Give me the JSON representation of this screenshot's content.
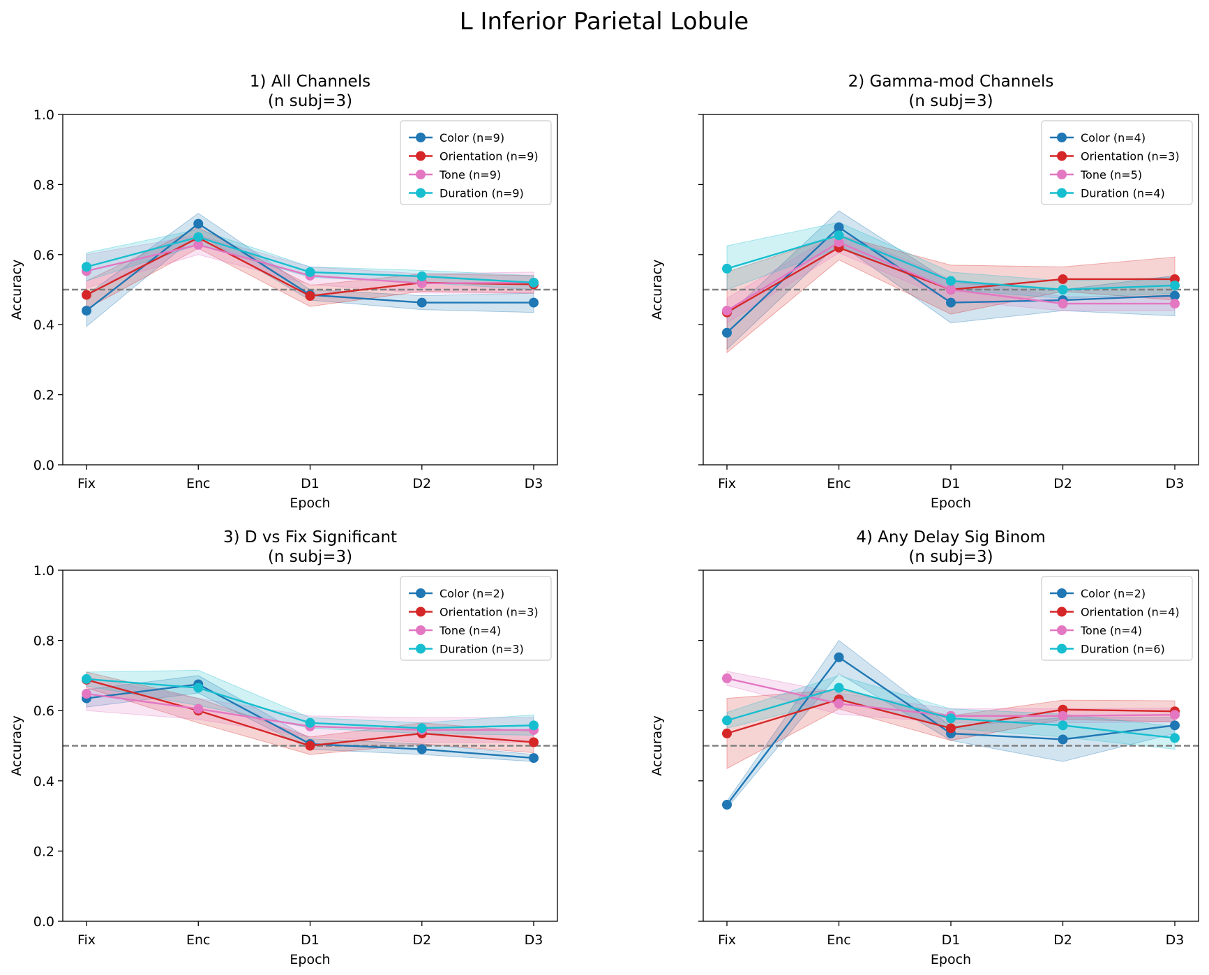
{
  "figure_title": "L Inferior Parietal Lobule",
  "colors": {
    "Color": "#1f77b4",
    "Orientation": "#d62728",
    "Tone": "#e377c2",
    "Duration": "#17becf",
    "chance_line": "#808080"
  },
  "chart_data": [
    {
      "type": "line",
      "title": "1) All Channels",
      "subtitle": "(n subj=3)",
      "xlabel": "Epoch",
      "ylabel": "Accuracy",
      "categories": [
        "Fix",
        "Enc",
        "D1",
        "D2",
        "D3"
      ],
      "ylim": [
        0.0,
        1.0
      ],
      "yticks": [
        "0.0",
        "0.2",
        "0.4",
        "0.6",
        "0.8",
        "1.0"
      ],
      "show_ytick_labels": true,
      "chance_level": 0.5,
      "legend_position": "top-right",
      "series": [
        {
          "name": "Color (n=9)",
          "key": "Color",
          "values": [
            0.44,
            0.688,
            0.485,
            0.463,
            0.463
          ],
          "lower": [
            0.395,
            0.658,
            0.47,
            0.443,
            0.435
          ],
          "upper": [
            0.485,
            0.718,
            0.5,
            0.483,
            0.49
          ]
        },
        {
          "name": "Orientation (n=9)",
          "key": "Orientation",
          "values": [
            0.485,
            0.648,
            0.482,
            0.52,
            0.515
          ],
          "lower": [
            0.445,
            0.618,
            0.452,
            0.495,
            0.49
          ],
          "upper": [
            0.525,
            0.678,
            0.512,
            0.545,
            0.54
          ]
        },
        {
          "name": "Tone (n=9)",
          "key": "Tone",
          "values": [
            0.553,
            0.628,
            0.54,
            0.518,
            0.52
          ],
          "lower": [
            0.505,
            0.6,
            0.515,
            0.49,
            0.49
          ],
          "upper": [
            0.6,
            0.655,
            0.565,
            0.545,
            0.55
          ]
        },
        {
          "name": "Duration (n=9)",
          "key": "Duration",
          "values": [
            0.565,
            0.65,
            0.55,
            0.538,
            0.52
          ],
          "lower": [
            0.525,
            0.628,
            0.535,
            0.52,
            0.5
          ],
          "upper": [
            0.605,
            0.672,
            0.565,
            0.555,
            0.54
          ]
        }
      ]
    },
    {
      "type": "line",
      "title": "2) Gamma-mod Channels",
      "subtitle": "(n subj=3)",
      "xlabel": "Epoch",
      "ylabel": "Accuracy",
      "categories": [
        "Fix",
        "Enc",
        "D1",
        "D2",
        "D3"
      ],
      "ylim": [
        0.0,
        1.0
      ],
      "yticks": [
        "0.0",
        "0.2",
        "0.4",
        "0.6",
        "0.8",
        "1.0"
      ],
      "show_ytick_labels": false,
      "chance_level": 0.5,
      "legend_position": "top-right",
      "series": [
        {
          "name": "Color (n=4)",
          "key": "Color",
          "values": [
            0.377,
            0.678,
            0.463,
            0.47,
            0.483
          ],
          "lower": [
            0.33,
            0.632,
            0.405,
            0.44,
            0.425
          ],
          "upper": [
            0.425,
            0.725,
            0.52,
            0.5,
            0.54
          ]
        },
        {
          "name": "Orientation (n=3)",
          "key": "Orientation",
          "values": [
            0.435,
            0.62,
            0.5,
            0.53,
            0.53
          ],
          "lower": [
            0.32,
            0.585,
            0.43,
            0.495,
            0.47
          ],
          "upper": [
            0.55,
            0.655,
            0.57,
            0.565,
            0.593
          ]
        },
        {
          "name": "Tone (n=5)",
          "key": "Tone",
          "values": [
            0.44,
            0.635,
            0.5,
            0.46,
            0.46
          ],
          "lower": [
            0.405,
            0.605,
            0.47,
            0.44,
            0.44
          ],
          "upper": [
            0.475,
            0.665,
            0.53,
            0.48,
            0.48
          ]
        },
        {
          "name": "Duration (n=4)",
          "key": "Duration",
          "values": [
            0.56,
            0.655,
            0.525,
            0.5,
            0.512
          ],
          "lower": [
            0.5,
            0.618,
            0.5,
            0.475,
            0.49
          ],
          "upper": [
            0.625,
            0.692,
            0.55,
            0.525,
            0.535
          ]
        }
      ]
    },
    {
      "type": "line",
      "title": "3) D vs Fix Significant",
      "subtitle": "(n subj=3)",
      "xlabel": "Epoch",
      "ylabel": "Accuracy",
      "categories": [
        "Fix",
        "Enc",
        "D1",
        "D2",
        "D3"
      ],
      "ylim": [
        0.0,
        1.0
      ],
      "yticks": [
        "0.0",
        "0.2",
        "0.4",
        "0.6",
        "0.8",
        "1.0"
      ],
      "show_ytick_labels": true,
      "chance_level": 0.5,
      "legend_position": "top-right",
      "series": [
        {
          "name": "Color (n=2)",
          "key": "Color",
          "values": [
            0.635,
            0.675,
            0.505,
            0.49,
            0.465
          ],
          "lower": [
            0.61,
            0.65,
            0.49,
            0.475,
            0.455
          ],
          "upper": [
            0.66,
            0.7,
            0.52,
            0.505,
            0.475
          ]
        },
        {
          "name": "Orientation (n=3)",
          "key": "Orientation",
          "values": [
            0.688,
            0.6,
            0.5,
            0.535,
            0.51
          ],
          "lower": [
            0.665,
            0.565,
            0.475,
            0.505,
            0.48
          ],
          "upper": [
            0.71,
            0.635,
            0.525,
            0.565,
            0.54
          ]
        },
        {
          "name": "Tone (n=4)",
          "key": "Tone",
          "values": [
            0.648,
            0.605,
            0.555,
            0.545,
            0.545
          ],
          "lower": [
            0.6,
            0.575,
            0.525,
            0.51,
            0.51
          ],
          "upper": [
            0.695,
            0.635,
            0.585,
            0.58,
            0.58
          ]
        },
        {
          "name": "Duration (n=3)",
          "key": "Duration",
          "values": [
            0.69,
            0.665,
            0.565,
            0.55,
            0.558
          ],
          "lower": [
            0.67,
            0.615,
            0.55,
            0.535,
            0.53
          ],
          "upper": [
            0.71,
            0.715,
            0.58,
            0.565,
            0.588
          ]
        }
      ]
    },
    {
      "type": "line",
      "title": "4) Any Delay Sig Binom",
      "subtitle": "(n subj=3)",
      "xlabel": "Epoch",
      "ylabel": "Accuracy",
      "categories": [
        "Fix",
        "Enc",
        "D1",
        "D2",
        "D3"
      ],
      "ylim": [
        0.0,
        1.0
      ],
      "yticks": [
        "0.0",
        "0.2",
        "0.4",
        "0.6",
        "0.8",
        "1.0"
      ],
      "show_ytick_labels": false,
      "chance_level": 0.5,
      "legend_position": "top-right",
      "series": [
        {
          "name": "Color (n=2)",
          "key": "Color",
          "values": [
            0.332,
            0.752,
            0.535,
            0.518,
            0.558
          ],
          "lower": [
            0.322,
            0.705,
            0.515,
            0.455,
            0.535
          ],
          "upper": [
            0.342,
            0.8,
            0.555,
            0.58,
            0.58
          ]
        },
        {
          "name": "Orientation (n=4)",
          "key": "Orientation",
          "values": [
            0.535,
            0.632,
            0.55,
            0.603,
            0.598
          ],
          "lower": [
            0.435,
            0.605,
            0.515,
            0.575,
            0.568
          ],
          "upper": [
            0.635,
            0.66,
            0.585,
            0.63,
            0.628
          ]
        },
        {
          "name": "Tone (n=4)",
          "key": "Tone",
          "values": [
            0.692,
            0.62,
            0.585,
            0.585,
            0.588
          ],
          "lower": [
            0.672,
            0.59,
            0.565,
            0.565,
            0.568
          ],
          "upper": [
            0.712,
            0.65,
            0.605,
            0.605,
            0.608
          ]
        },
        {
          "name": "Duration (n=6)",
          "key": "Duration",
          "values": [
            0.572,
            0.665,
            0.578,
            0.558,
            0.522
          ],
          "lower": [
            0.55,
            0.63,
            0.55,
            0.525,
            0.49
          ],
          "upper": [
            0.595,
            0.7,
            0.605,
            0.59,
            0.555
          ]
        }
      ]
    }
  ]
}
